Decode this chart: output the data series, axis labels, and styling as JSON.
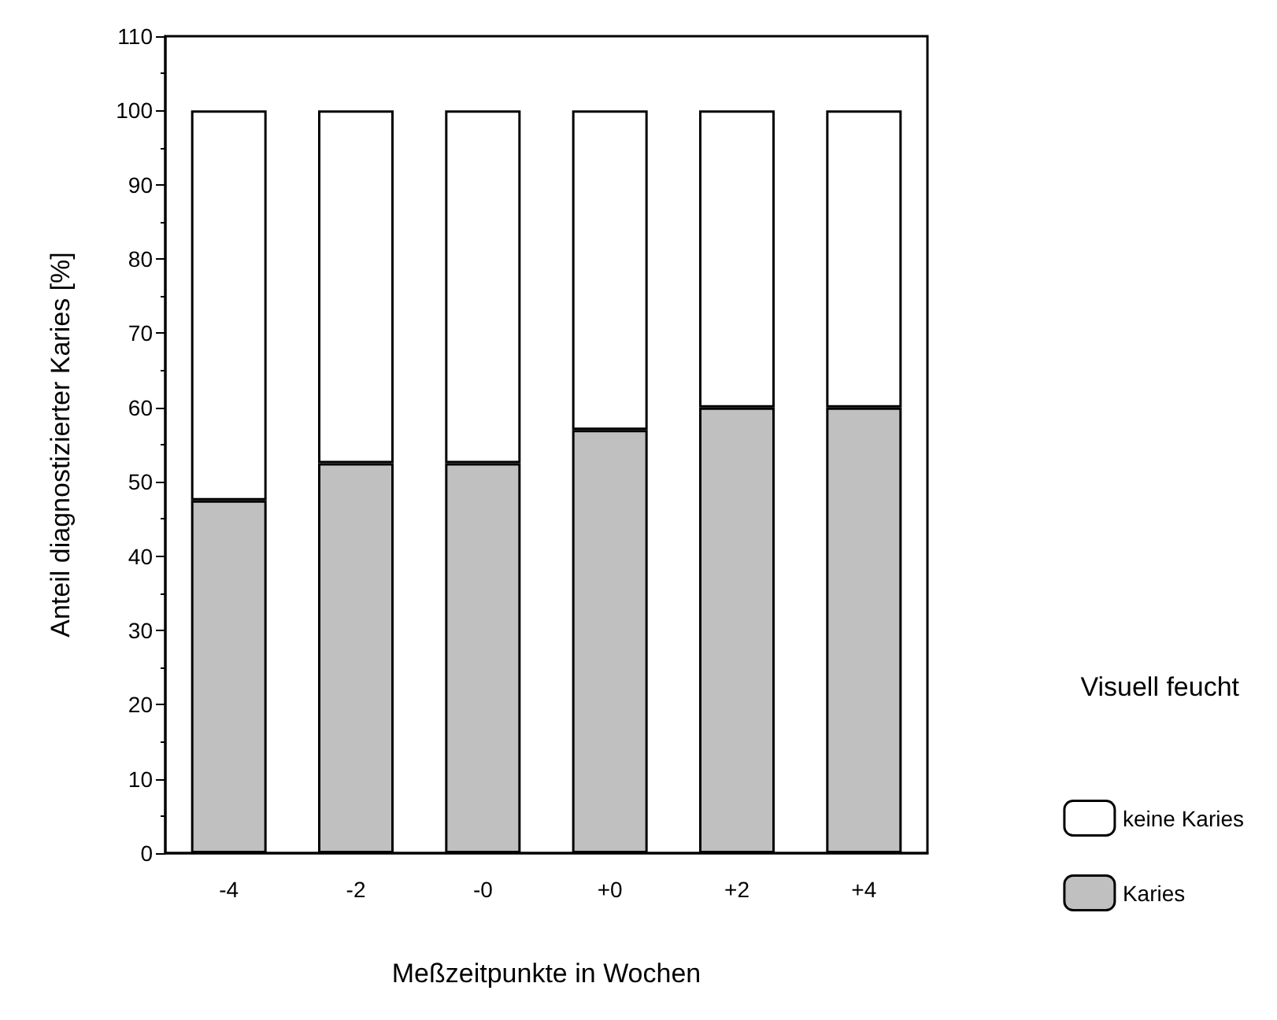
{
  "chart_data": {
    "type": "bar",
    "stacked": true,
    "xlabel": "Meßzeitpunkte in Wochen",
    "ylabel": "Anteil diagnostizierter Karies [%]",
    "legend_title": "Visuell feucht",
    "legend": "right",
    "categories": [
      "-4",
      "-2",
      "-0",
      "+0",
      "+2",
      "+4"
    ],
    "series": [
      {
        "name": "Karies",
        "color": "#c0c0c0",
        "values": [
          47.5,
          52.5,
          52.5,
          57,
          60,
          60
        ]
      },
      {
        "name": "keine Karies",
        "color": "#ffffff",
        "values": [
          52.5,
          47.5,
          47.5,
          43,
          40,
          40
        ]
      }
    ],
    "ylim": [
      0,
      110
    ],
    "yticks": [
      0,
      10,
      20,
      30,
      40,
      50,
      60,
      70,
      80,
      90,
      100,
      110
    ],
    "grid": false
  }
}
